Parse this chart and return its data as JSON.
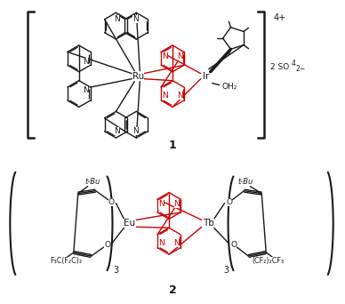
{
  "background_color": "#ffffff",
  "black_color": "#1a1a1a",
  "red_color": "#cc0000",
  "fig_width": 3.88,
  "fig_height": 3.42,
  "dpi": 100,
  "compound1_label": "1",
  "compound2_label": "2",
  "charge_label": "4+",
  "counter_ion_line1": "2 SO",
  "counter_ion_sub": "4",
  "counter_ion_sup": "2−",
  "eu_label": "Eu",
  "tb_label": "Tb",
  "ru_label": "Ru",
  "ir_label": "Ir",
  "oh2_label": "OH₂",
  "tbu_label": "t-Bu",
  "f3c_label": "F₃C(F₂C)₂",
  "cf2_label": "(CF₂)₂CF₃",
  "n_label": "N",
  "o_label": "O",
  "sub3": "3"
}
